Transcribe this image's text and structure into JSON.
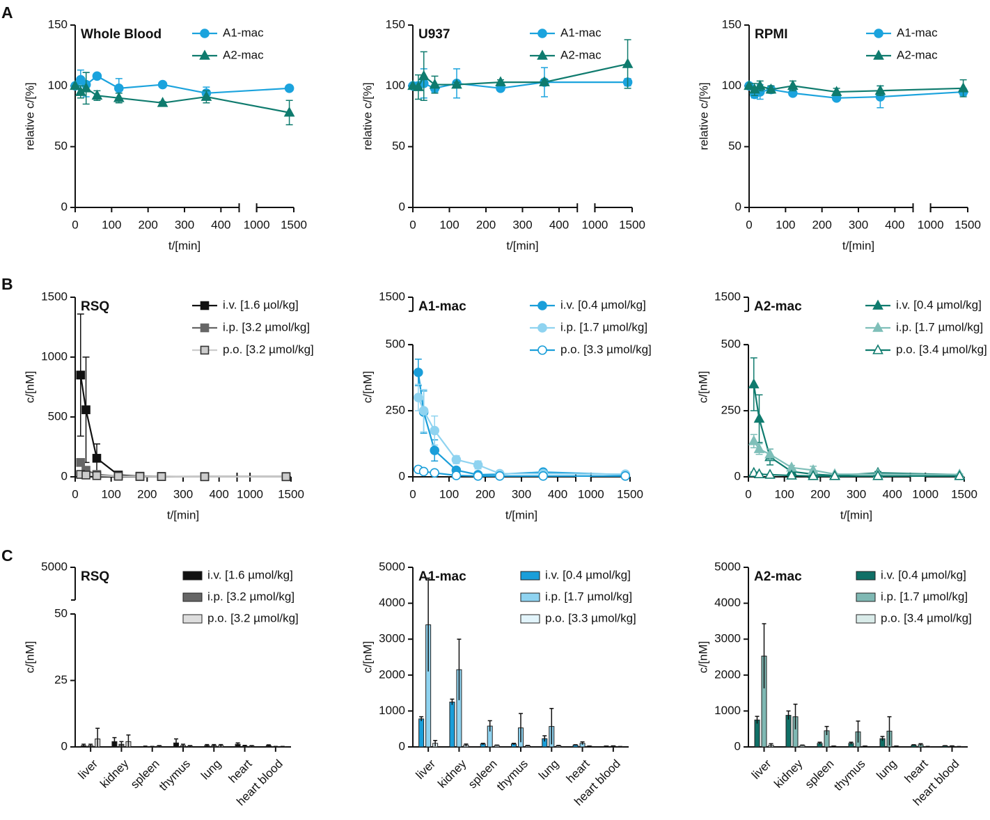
{
  "chart_data": [
    {
      "type": "line",
      "panel": "A",
      "title": "Whole Blood",
      "xlabel": "t/[min]",
      "ylabel": "relative c/[%]",
      "x": [
        0,
        15,
        30,
        60,
        120,
        240,
        360,
        1440
      ],
      "xlim": [
        0,
        1500
      ],
      "xbreak": [
        450,
        1000
      ],
      "xticks": [
        0,
        100,
        200,
        300,
        400,
        1000,
        1500
      ],
      "ylim": [
        0,
        150
      ],
      "yticks": [
        0,
        50,
        100,
        150
      ],
      "legend": "upper right",
      "series": [
        {
          "name": "A1-mac",
          "color": "#1ba3dd",
          "marker": "circle",
          "values": [
            100,
            105,
            101,
            108,
            98,
            101,
            94,
            98
          ],
          "errors": [
            0,
            8,
            10,
            2,
            8,
            1,
            5,
            2
          ]
        },
        {
          "name": "A2-mac",
          "color": "#0f7b6e",
          "marker": "triangle",
          "values": [
            100,
            95,
            98,
            92,
            90,
            86,
            91,
            78
          ],
          "errors": [
            0,
            5,
            13,
            4,
            4,
            1,
            5,
            10
          ]
        }
      ]
    },
    {
      "type": "line",
      "title": "U937",
      "xlabel": "t/[min]",
      "ylabel": "relative c/[%]",
      "x": [
        0,
        15,
        30,
        60,
        120,
        240,
        360,
        1440
      ],
      "xlim": [
        0,
        1500
      ],
      "xbreak": [
        450,
        1000
      ],
      "xticks": [
        0,
        100,
        200,
        300,
        400,
        1000,
        1500
      ],
      "ylim": [
        0,
        150
      ],
      "yticks": [
        0,
        50,
        100,
        150
      ],
      "legend": "upper right",
      "series": [
        {
          "name": "A1-mac",
          "color": "#1ba3dd",
          "marker": "circle",
          "values": [
            100,
            100,
            102,
            98,
            102,
            98,
            103,
            103
          ],
          "errors": [
            0,
            3,
            12,
            3,
            12,
            2,
            12,
            3
          ]
        },
        {
          "name": "A2-mac",
          "color": "#0f7b6e",
          "marker": "triangle",
          "values": [
            100,
            99,
            108,
            101,
            101,
            103,
            103,
            118
          ],
          "errors": [
            0,
            10,
            20,
            7,
            2,
            2,
            2,
            20
          ]
        }
      ]
    },
    {
      "type": "line",
      "title": "RPMI",
      "xlabel": "t/[min]",
      "ylabel": "relative c/[%]",
      "x": [
        0,
        15,
        30,
        60,
        120,
        240,
        360,
        1440
      ],
      "xlim": [
        0,
        1500
      ],
      "xbreak": [
        450,
        1000
      ],
      "xticks": [
        0,
        100,
        200,
        300,
        400,
        1000,
        1500
      ],
      "ylim": [
        0,
        150
      ],
      "yticks": [
        0,
        50,
        100,
        150
      ],
      "legend": "upper right",
      "series": [
        {
          "name": "A1-mac",
          "color": "#1ba3dd",
          "marker": "circle",
          "values": [
            100,
            93,
            95,
            97,
            94,
            90,
            91,
            95
          ],
          "errors": [
            0,
            3,
            6,
            3,
            2,
            2,
            9,
            3
          ]
        },
        {
          "name": "A2-mac",
          "color": "#0f7b6e",
          "marker": "triangle",
          "values": [
            100,
            97,
            100,
            97,
            100,
            95,
            96,
            98
          ],
          "errors": [
            0,
            5,
            4,
            3,
            4,
            3,
            4,
            7
          ]
        }
      ]
    },
    {
      "type": "line",
      "panel": "B",
      "title": "RSQ",
      "xlabel": "t/[min]",
      "ylabel": "c/[nM]",
      "x": [
        15,
        30,
        60,
        120,
        180,
        240,
        360,
        1440
      ],
      "xlim": [
        0,
        1500
      ],
      "xbreak": [
        450,
        1000
      ],
      "xticks": [
        0,
        100,
        200,
        300,
        400,
        1000,
        1500
      ],
      "ylim": [
        0,
        1500
      ],
      "yticks": [
        0,
        500,
        1000,
        1500
      ],
      "legend": "upper right",
      "series": [
        {
          "name": "i.v. [1.6 µol/kg]",
          "color": "#111111",
          "marker": "square",
          "values": [
            850,
            560,
            155,
            15,
            5,
            3,
            2,
            2
          ],
          "errors": [
            510,
            440,
            120,
            5,
            2,
            1,
            1,
            1
          ]
        },
        {
          "name": "i.p. [3.2 µmol/kg]",
          "color": "#666666",
          "marker": "square",
          "values": [
            120,
            55,
            20,
            5,
            3,
            2,
            1,
            1
          ],
          "errors": [
            20,
            10,
            5,
            2,
            1,
            1,
            1,
            1
          ]
        },
        {
          "name": "p.o. [3.2 µmol/kg]",
          "color": "#cccccc",
          "marker": "square",
          "values": [
            20,
            15,
            10,
            5,
            3,
            2,
            1,
            1
          ],
          "errors": [
            5,
            3,
            2,
            1,
            1,
            1,
            1,
            1
          ]
        }
      ]
    },
    {
      "type": "line",
      "title": "A1-mac",
      "xlabel": "t/[min]",
      "ylabel": "c/[nM]",
      "x": [
        15,
        30,
        60,
        120,
        180,
        240,
        360,
        1440
      ],
      "xlim": [
        0,
        1500
      ],
      "xbreak": [
        450,
        1000
      ],
      "xticks": [
        0,
        100,
        200,
        300,
        400,
        1000,
        1500
      ],
      "ylim": [
        0,
        1500
      ],
      "ybreak": [
        500,
        1400
      ],
      "yticks": [
        0,
        250,
        500,
        1500
      ],
      "legend": "upper right",
      "series": [
        {
          "name": "i.v. [0.4 µmol/kg]",
          "color": "#1a9ed9",
          "marker": "circle",
          "values": [
            395,
            245,
            100,
            25,
            8,
            10,
            18,
            8
          ],
          "errors": [
            50,
            80,
            40,
            10,
            3,
            3,
            5,
            5
          ]
        },
        {
          "name": "i.p. [1.7 µmol/kg]",
          "color": "#8fd3f0",
          "marker": "circle",
          "values": [
            300,
            250,
            175,
            65,
            45,
            12,
            12,
            10
          ],
          "errors": [
            50,
            80,
            55,
            15,
            15,
            3,
            3,
            3
          ]
        },
        {
          "name": "p.o. [3.3 µmol/kg]",
          "color": "#1a9ed9",
          "marker": "open-circle",
          "values": [
            28,
            20,
            15,
            5,
            3,
            3,
            3,
            3
          ],
          "errors": [
            5,
            5,
            3,
            2,
            1,
            1,
            1,
            1
          ]
        }
      ]
    },
    {
      "type": "line",
      "title": "A2-mac",
      "xlabel": "t/[min]",
      "ylabel": "c/[nM]",
      "x": [
        15,
        30,
        60,
        120,
        180,
        240,
        360,
        1440
      ],
      "xlim": [
        0,
        1500
      ],
      "xbreak": [
        450,
        1000
      ],
      "xticks": [
        0,
        100,
        200,
        300,
        400,
        1000,
        1500
      ],
      "ylim": [
        0,
        1500
      ],
      "ybreak": [
        500,
        1400
      ],
      "yticks": [
        0,
        250,
        500,
        1500
      ],
      "legend": "upper right",
      "series": [
        {
          "name": "i.v. [0.4 µmol/kg]",
          "color": "#0f7b6e",
          "marker": "triangle",
          "values": [
            350,
            220,
            75,
            20,
            10,
            5,
            15,
            8
          ],
          "errors": [
            100,
            90,
            30,
            10,
            5,
            3,
            5,
            3
          ]
        },
        {
          "name": "i.p. [1.7 µmol/kg]",
          "color": "#7fbfb9",
          "marker": "triangle",
          "values": [
            135,
            105,
            85,
            35,
            25,
            10,
            10,
            8
          ],
          "errors": [
            25,
            20,
            20,
            8,
            15,
            3,
            3,
            3
          ]
        },
        {
          "name": "p.o. [3.4 µmol/kg]",
          "color": "#0f7b6e",
          "marker": "open-triangle",
          "values": [
            15,
            10,
            8,
            5,
            3,
            3,
            3,
            3
          ],
          "errors": [
            3,
            3,
            2,
            1,
            1,
            1,
            1,
            1
          ]
        }
      ]
    },
    {
      "type": "bar",
      "panel": "C",
      "title": "RSQ",
      "ylabel": "c/[nM]",
      "categories": [
        "liver",
        "kidney",
        "spleen",
        "thymus",
        "lung",
        "heart",
        "heart blood"
      ],
      "ylim": [
        0,
        5000
      ],
      "ybreak": [
        50,
        4000
      ],
      "yticks": [
        0,
        25,
        50,
        5000
      ],
      "legend": "upper right",
      "series": [
        {
          "name": "i.v. [1.6 µmol/kg]",
          "color": "#111111",
          "values": [
            0.5,
            2,
            0.1,
            1.5,
            0.5,
            1,
            0.5
          ],
          "errors": [
            0.5,
            1.5,
            0.2,
            1.5,
            0.4,
            0.5,
            0.3
          ]
        },
        {
          "name": "i.p. [3.2 µmol/kg]",
          "color": "#666666",
          "values": [
            0.5,
            1,
            0.1,
            0.5,
            0.5,
            0.3,
            0.1
          ],
          "errors": [
            0.5,
            1,
            0.1,
            0.5,
            0.4,
            0.3,
            0.1
          ]
        },
        {
          "name": "p.o. [3.2 µmol/kg]",
          "color": "#dddddd",
          "values": [
            3,
            2,
            0.3,
            0.3,
            0.5,
            0.3,
            0.1
          ],
          "errors": [
            4,
            2.5,
            0.2,
            0.2,
            0.4,
            0.2,
            0.1
          ]
        }
      ]
    },
    {
      "type": "bar",
      "title": "A1-mac",
      "ylabel": "c/[nM]",
      "categories": [
        "liver",
        "kidney",
        "spleen",
        "thymus",
        "lung",
        "heart",
        "heart blood"
      ],
      "ylim": [
        0,
        5000
      ],
      "yticks": [
        0,
        1000,
        2000,
        3000,
        4000,
        5000
      ],
      "legend": "upper right",
      "series": [
        {
          "name": "i.v. [0.4 µmol/kg]",
          "color": "#1a9ed9",
          "values": [
            780,
            1250,
            80,
            80,
            230,
            50,
            20
          ],
          "errors": [
            60,
            80,
            20,
            20,
            80,
            10,
            5
          ]
        },
        {
          "name": "i.p. [1.7 µmol/kg]",
          "color": "#8fd3f0",
          "values": [
            3400,
            2150,
            580,
            530,
            570,
            100,
            20
          ],
          "errors": [
            1300,
            850,
            150,
            400,
            500,
            40,
            10
          ]
        },
        {
          "name": "p.o. [3.3 µmol/kg]",
          "color": "#e2f4fb",
          "values": [
            100,
            50,
            40,
            30,
            30,
            20,
            10
          ],
          "errors": [
            80,
            30,
            10,
            10,
            10,
            5,
            3
          ]
        }
      ]
    },
    {
      "type": "bar",
      "title": "A2-mac",
      "ylabel": "c/[nM]",
      "categories": [
        "liver",
        "kidney",
        "spleen",
        "thymus",
        "lung",
        "heart",
        "heart blood"
      ],
      "ylim": [
        0,
        5000
      ],
      "yticks": [
        0,
        1000,
        2000,
        3000,
        4000,
        5000
      ],
      "legend": "upper right",
      "series": [
        {
          "name": "i.v. [0.4 µmol/kg]",
          "color": "#0f6f66",
          "values": [
            750,
            880,
            100,
            100,
            230,
            50,
            30
          ],
          "errors": [
            100,
            120,
            30,
            30,
            60,
            10,
            5
          ]
        },
        {
          "name": "i.p. [1.7 µmol/kg]",
          "color": "#7fb8b3",
          "values": [
            2530,
            840,
            450,
            420,
            440,
            60,
            20
          ],
          "errors": [
            900,
            350,
            120,
            300,
            400,
            30,
            10
          ]
        },
        {
          "name": "p.o. [3.4 µmol/kg]",
          "color": "#d9ebe9",
          "values": [
            50,
            40,
            20,
            20,
            20,
            10,
            10
          ],
          "errors": [
            40,
            10,
            5,
            5,
            5,
            5,
            3
          ]
        }
      ]
    }
  ]
}
